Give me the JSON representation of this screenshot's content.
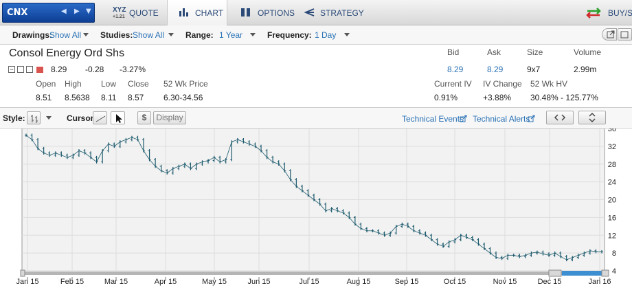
{
  "symbol": "CNX",
  "nav": {
    "quote": "QUOTE",
    "chart": "CHART",
    "options": "OPTIONS",
    "strategy": "STRATEGY",
    "buysell": "BUY/SE",
    "xyz": "XYZ",
    "xyz_sub": "+1.21"
  },
  "toolbar": {
    "drawings_label": "Drawings:",
    "drawings_value": "Show All",
    "studies_label": "Studies:",
    "studies_value": "Show All",
    "range_label": "Range:",
    "range_value": "1 Year",
    "frequency_label": "Frequency:",
    "frequency_value": "1 Day"
  },
  "quote": {
    "name": "Consol Energy Ord Shs",
    "last": "8.29",
    "change": "-0.28",
    "pct": "-3.27%",
    "open_label": "Open",
    "open": "8.51",
    "high_label": "High",
    "high": "8.5638",
    "low_label": "Low",
    "low": "8.11",
    "close_label": "Close",
    "close": "8.57",
    "wk52_label": "52 Wk Price",
    "wk52": "6.30-34.56",
    "bid_label": "Bid",
    "bid": "8.29",
    "ask_label": "Ask",
    "ask": "8.29",
    "size_label": "Size",
    "size": "9x7",
    "volume_label": "Volume",
    "volume": "2.99m",
    "iv_label": "Current IV",
    "iv": "0.91%",
    "ivchg_label": "IV Change",
    "ivchg": "+3.88%",
    "hv_label": "52 Wk HV",
    "hv": "30.48% - 125.77%"
  },
  "chart_toolbar": {
    "style_label": "Style:",
    "cursor_label": "Cursor:",
    "dollar": "$",
    "display": "Display",
    "tech_events": "Technical Events",
    "tech_alerts": "Technical Alerts"
  },
  "colors": {
    "accent": "#2a72b5",
    "bar": "#1d5a6e",
    "brand": "#0d3f94"
  },
  "chart_data": {
    "type": "line",
    "x_ticks": [
      "Jan 15",
      "Feb 15",
      "Mar 15",
      "Apr 15",
      "May 15",
      "Jun 15",
      "Jul 15",
      "Aug 15",
      "Sep 15",
      "Oct 15",
      "Nov 15",
      "Dec 15",
      "Jan 16"
    ],
    "y_ticks": [
      "4",
      "8",
      "12",
      "16",
      "20",
      "24",
      "28",
      "32",
      "36"
    ],
    "ylim": [
      4,
      36
    ],
    "series": [
      {
        "values": [
          34.5,
          33.5,
          31.5,
          30.5,
          30,
          30.5,
          30,
          29.5,
          30,
          31,
          30.5,
          29.5,
          28.5,
          31,
          32.5,
          32,
          33,
          33.5,
          34,
          33.5,
          31,
          29,
          27.5,
          26.5,
          26,
          27,
          27.5,
          28,
          27,
          28,
          28.5,
          28.8,
          29.5,
          28.5,
          29,
          33,
          33.5,
          33,
          32.5,
          32,
          31,
          29.5,
          28.5,
          28,
          26.5,
          24.5,
          23,
          22,
          21,
          20,
          19,
          17.5,
          18,
          17.5,
          17,
          16,
          14.5,
          13.5,
          13,
          13,
          12.5,
          12,
          12.5,
          14,
          14.5,
          14,
          13,
          12.5,
          12,
          11,
          10,
          9.5,
          10.5,
          11,
          12,
          11.5,
          11,
          10,
          9,
          8,
          7,
          6.8,
          7.5,
          7.5,
          7.2,
          7.5,
          8,
          8.2,
          7.8,
          7.5,
          8,
          7.2,
          6.5,
          7,
          7.5,
          8,
          8.5,
          8.3,
          8.29
        ]
      }
    ]
  }
}
